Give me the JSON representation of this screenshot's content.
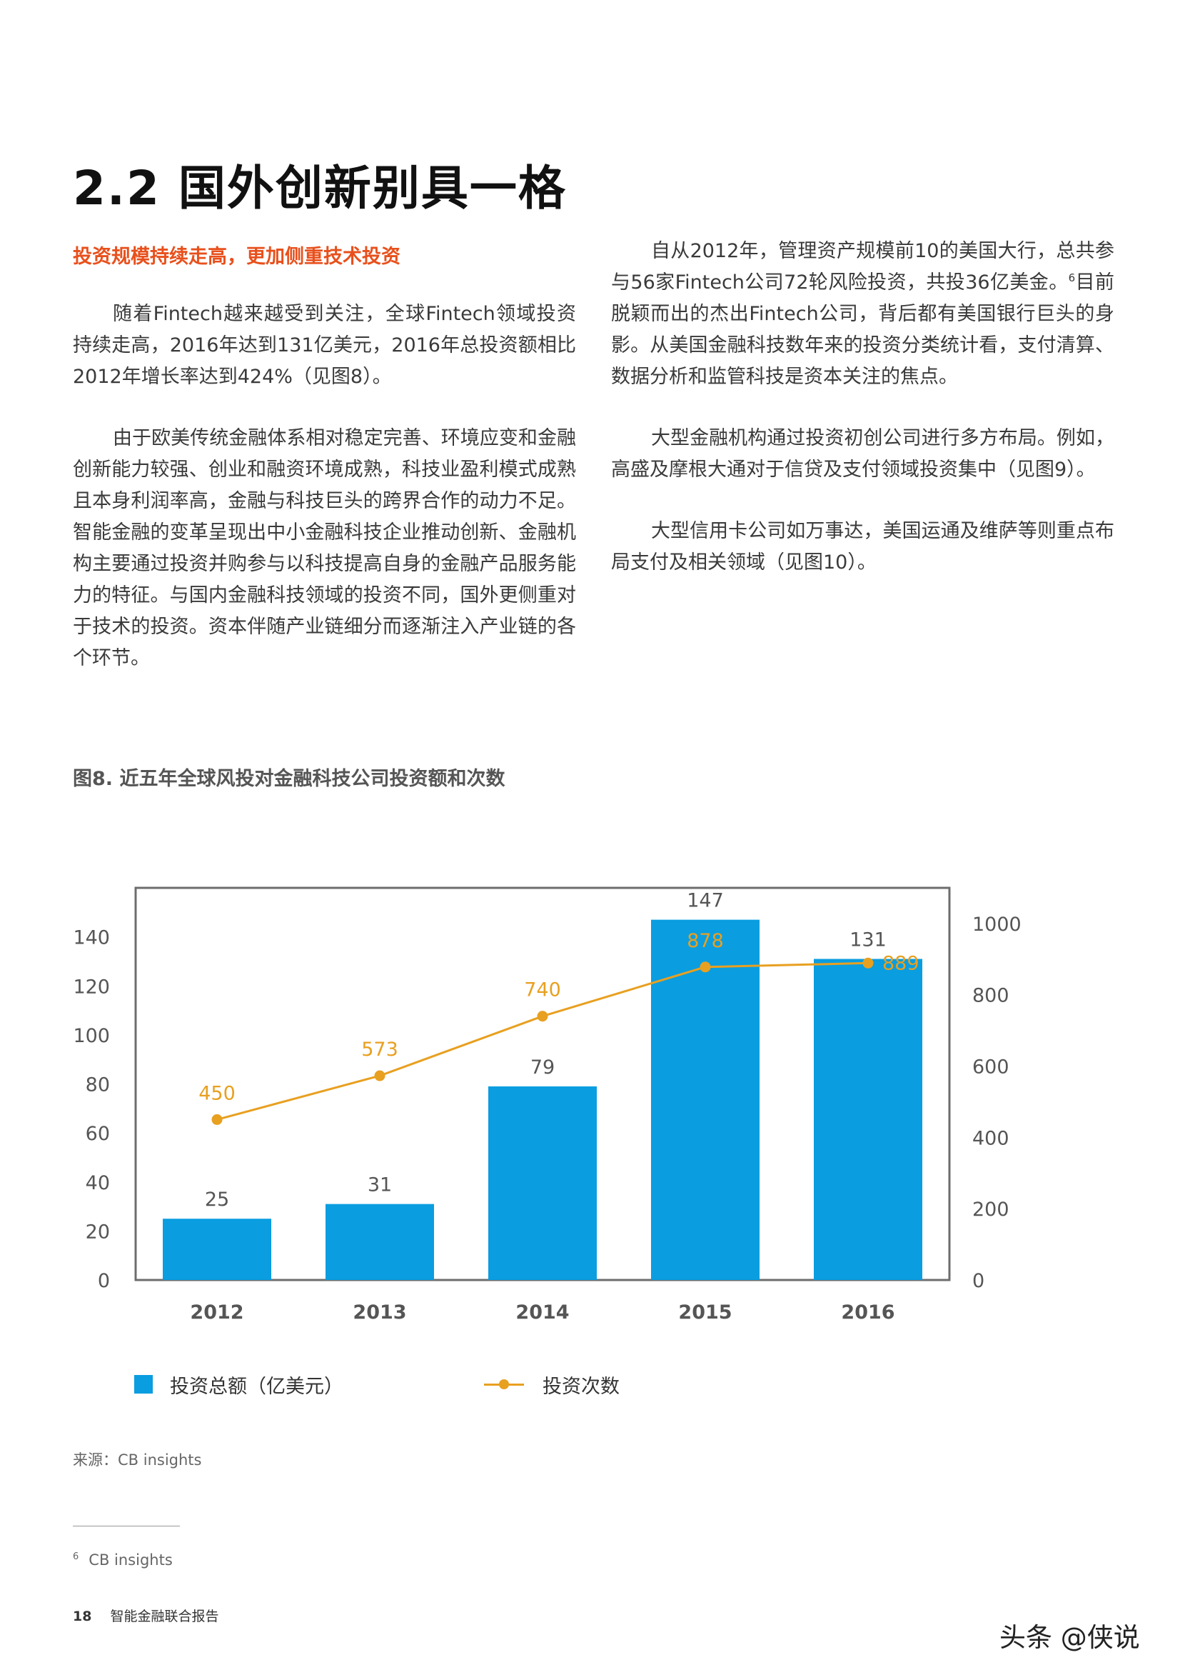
{
  "heading": "2.2 国外创新别具一格",
  "subheading": "投资规模持续走高，更加侧重技术投资",
  "left_paragraphs": [
    "随着Fintech越来越受到关注，全球Fintech领域投资持续走高，2016年达到131亿美元，2016年总投资额相比2012年增长率达到424%（见图8）。",
    "由于欧美传统金融体系相对稳定完善、环境应变和金融创新能力较强、创业和融资环境成熟，科技业盈利模式成熟且本身利润率高，金融与科技巨头的跨界合作的动力不足。智能金融的变革呈现出中小金融科技企业推动创新、金融机构主要通过投资并购参与以科技提高自身的金融产品服务能力的特征。与国内金融科技领域的投资不同，国外更侧重对于技术的投资。资本伴随产业链细分而逐渐注入产业链的各个环节。"
  ],
  "right_para1_a": "自从2012年，管理资产规模前10的美国大行，总共参与56家Fintech公司72轮风险投资，共投36亿美金。",
  "right_para1_sup": "6",
  "right_para1_b": "目前脱颖而出的杰出Fintech公司，背后都有美国银行巨头的身影。从美国金融科技数年来的投资分类统计看，支付清算、数据分析和监管科技是资本关注的焦点。",
  "right_para2": "大型金融机构通过投资初创公司进行多方布局。例如，高盛及摩根大通对于信贷及支付领域投资集中（见图9）。",
  "right_para3": "大型信用卡公司如万事达，美国运通及维萨等则重点布局支付及相关领域（见图10）。",
  "figure_title": "图8. 近五年全球风投对金融科技公司投资额和次数",
  "chart_data": {
    "type": "bar",
    "categories": [
      "2012",
      "2013",
      "2014",
      "2015",
      "2016"
    ],
    "series": [
      {
        "name": "投资总额（亿美元）",
        "type": "bar",
        "axis": "left",
        "values": [
          25,
          31,
          79,
          147,
          131
        ],
        "color": "#0a9de0"
      },
      {
        "name": "投资次数",
        "type": "line",
        "axis": "right",
        "values": [
          450,
          573,
          740,
          878,
          889
        ],
        "color": "#e8a020"
      }
    ],
    "y_left": {
      "ticks": [
        0,
        20,
        40,
        60,
        80,
        100,
        120,
        140
      ],
      "range": [
        0,
        160
      ]
    },
    "y_right": {
      "ticks": [
        0,
        200,
        400,
        600,
        800,
        1000
      ],
      "range": [
        0,
        1100
      ]
    },
    "grid": false,
    "legend_position": "bottom"
  },
  "legend": {
    "bar_label": "投资总额（亿美元）",
    "line_label": "投资次数"
  },
  "source": "来源：CB insights",
  "footnote": {
    "num": "6",
    "text": "CB insights"
  },
  "footer": {
    "page": "18",
    "title": "智能金融联合报告"
  },
  "watermark": "头条 @侠说",
  "colors": {
    "accent": "#e8501c",
    "bar": "#0a9de0",
    "line": "#e8a020"
  }
}
